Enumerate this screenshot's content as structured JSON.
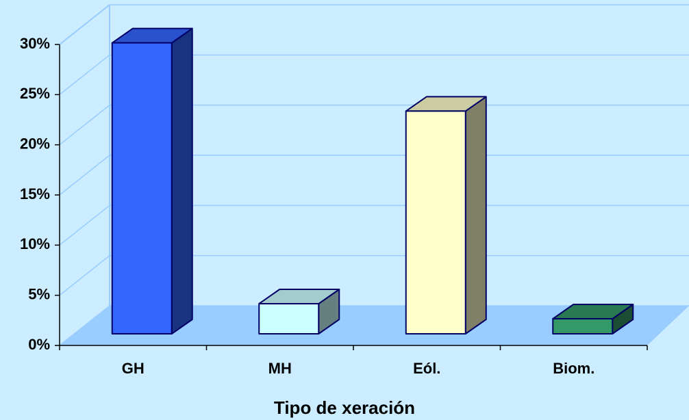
{
  "chart_data": {
    "type": "bar",
    "categories": [
      "GH",
      "MH",
      "Eól.",
      "Biom."
    ],
    "values": [
      29,
      3,
      22.2,
      1.5
    ],
    "colors": [
      "#3366ff",
      "#ccffff",
      "#ffffcc",
      "#339966"
    ],
    "ylim": [
      0,
      30
    ],
    "yticks": [
      {
        "value": 0,
        "label": "0%"
      },
      {
        "value": 5,
        "label": "5%"
      },
      {
        "value": 10,
        "label": "10%"
      },
      {
        "value": 15,
        "label": "15%"
      },
      {
        "value": 20,
        "label": "20%"
      },
      {
        "value": 25,
        "label": "25%"
      },
      {
        "value": 30,
        "label": "30%"
      }
    ],
    "x_label": "Tipo de xeración",
    "grid": true
  }
}
